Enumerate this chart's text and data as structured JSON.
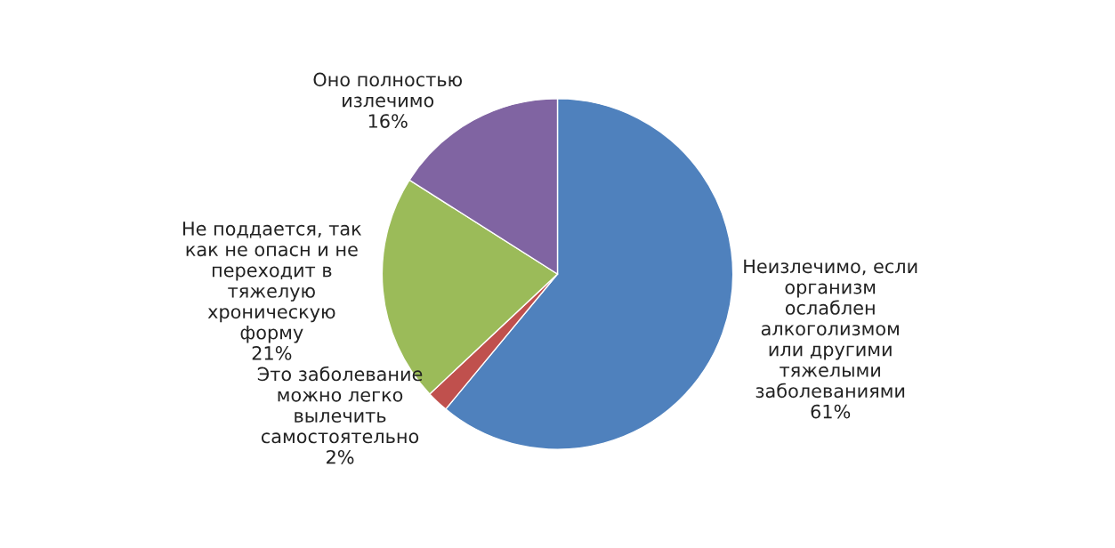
{
  "chart_data": {
    "type": "pie",
    "categories": [
      "Неизлечимо, если\nорганизм\nослаблен\nалкоголизмом\nили другими\nтяжелыми\nзаболеваниями",
      "Это заболевание\nможно легко\nвылечить\nсамостоятельно",
      "Не поддается, так\nкак не опасн и не\nпереходит в\nтяжелую\nхроническую\nформу",
      "Оно полностью\nизлечимо"
    ],
    "values": [
      61,
      2,
      21,
      16
    ],
    "value_labels": [
      "61%",
      "2%",
      "21%",
      "16%"
    ],
    "colors": [
      "#4f81bd",
      "#c0504d",
      "#9bbb59",
      "#8064a2"
    ]
  }
}
